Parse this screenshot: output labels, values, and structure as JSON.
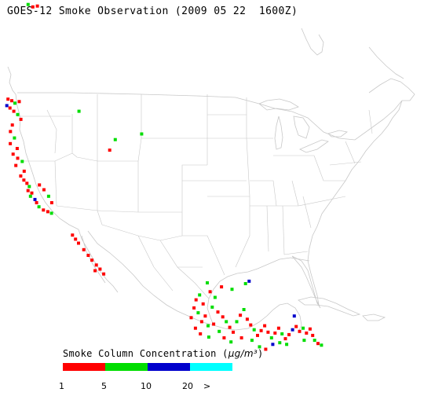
{
  "title": "GOES-12 Smoke Observation (2009 05 22  1600Z)",
  "legend": {
    "title_prefix": "Smoke Column Concentration (",
    "unit": "µg/m³",
    "title_suffix": ")",
    "colors": [
      "#ff0000",
      "#00dd00",
      "#0000cc",
      "#00ffff"
    ],
    "ticks": [
      "1",
      "5",
      "10",
      "20",
      ">"
    ]
  },
  "map": {
    "border_color": "#c8c8c8",
    "smoke_cells": [
      {
        "lon": -124.1,
        "lat": 48.4,
        "level": 0
      },
      {
        "lon": -123.6,
        "lat": 48.2,
        "level": 0
      },
      {
        "lon": -124.3,
        "lat": 47.6,
        "level": 2
      },
      {
        "lon": -123.9,
        "lat": 47.3,
        "level": 0
      },
      {
        "lon": -123.2,
        "lat": 47.9,
        "level": 1
      },
      {
        "lon": -122.6,
        "lat": 48.1,
        "level": 0
      },
      {
        "lon": -123.4,
        "lat": 46.9,
        "level": 0
      },
      {
        "lon": -122.9,
        "lat": 46.5,
        "level": 1
      },
      {
        "lon": -122.5,
        "lat": 45.9,
        "level": 0
      },
      {
        "lon": -123.7,
        "lat": 45.2,
        "level": 0
      },
      {
        "lon": -124.0,
        "lat": 44.4,
        "level": 0
      },
      {
        "lon": -123.5,
        "lat": 43.6,
        "level": 1
      },
      {
        "lon": -124.1,
        "lat": 42.9,
        "level": 0
      },
      {
        "lon": -123.2,
        "lat": 42.3,
        "level": 0
      },
      {
        "lon": -123.8,
        "lat": 41.6,
        "level": 0
      },
      {
        "lon": -123.2,
        "lat": 41.1,
        "level": 0
      },
      {
        "lon": -122.6,
        "lat": 40.7,
        "level": 1
      },
      {
        "lon": -123.5,
        "lat": 40.2,
        "level": 0
      },
      {
        "lon": -122.4,
        "lat": 39.5,
        "level": 0
      },
      {
        "lon": -122.9,
        "lat": 38.9,
        "level": 0
      },
      {
        "lon": -122.5,
        "lat": 38.4,
        "level": 0
      },
      {
        "lon": -122.1,
        "lat": 38.0,
        "level": 0
      },
      {
        "lon": -121.8,
        "lat": 37.6,
        "level": 1
      },
      {
        "lon": -122.0,
        "lat": 37.1,
        "level": 0
      },
      {
        "lon": -121.5,
        "lat": 36.8,
        "level": 0
      },
      {
        "lon": -121.7,
        "lat": 36.4,
        "level": 1
      },
      {
        "lon": -121.1,
        "lat": 36.0,
        "level": 2
      },
      {
        "lon": -120.9,
        "lat": 35.6,
        "level": 0
      },
      {
        "lon": -120.6,
        "lat": 35.1,
        "level": 1
      },
      {
        "lon": -120.0,
        "lat": 34.7,
        "level": 0
      },
      {
        "lon": -119.4,
        "lat": 34.5,
        "level": 0
      },
      {
        "lon": -118.9,
        "lat": 34.3,
        "level": 1
      },
      {
        "lon": -120.4,
        "lat": 37.8,
        "level": 0
      },
      {
        "lon": -119.8,
        "lat": 37.2,
        "level": 0
      },
      {
        "lon": -119.2,
        "lat": 36.4,
        "level": 1
      },
      {
        "lon": -118.8,
        "lat": 35.6,
        "level": 0
      },
      {
        "lon": -116.1,
        "lat": 31.6,
        "level": 0
      },
      {
        "lon": -115.7,
        "lat": 31.1,
        "level": 0
      },
      {
        "lon": -115.3,
        "lat": 30.6,
        "level": 0
      },
      {
        "lon": -114.6,
        "lat": 29.8,
        "level": 0
      },
      {
        "lon": -114.0,
        "lat": 29.1,
        "level": 0
      },
      {
        "lon": -113.5,
        "lat": 28.5,
        "level": 0
      },
      {
        "lon": -112.9,
        "lat": 27.9,
        "level": 0
      },
      {
        "lon": -112.4,
        "lat": 27.4,
        "level": 0
      },
      {
        "lon": -113.1,
        "lat": 27.2,
        "level": 0
      },
      {
        "lon": -111.9,
        "lat": 26.8,
        "level": 0
      },
      {
        "lon": -114.6,
        "lat": 46.9,
        "level": 1
      },
      {
        "lon": -109.8,
        "lat": 43.4,
        "level": 1
      },
      {
        "lon": -110.6,
        "lat": 42.1,
        "level": 0
      },
      {
        "lon": -106.2,
        "lat": 44.1,
        "level": 1
      },
      {
        "lon": -120.8,
        "lat": 60.1,
        "level": 1
      },
      {
        "lon": -120.2,
        "lat": 59.8,
        "level": 0
      },
      {
        "lon": -119.6,
        "lat": 59.9,
        "level": 0
      },
      {
        "lon": -98.9,
        "lat": 23.6,
        "level": 0
      },
      {
        "lon": -98.4,
        "lat": 24.2,
        "level": 1
      },
      {
        "lon": -97.9,
        "lat": 23.1,
        "level": 0
      },
      {
        "lon": -99.2,
        "lat": 22.6,
        "level": 0
      },
      {
        "lon": -98.6,
        "lat": 22.0,
        "level": 1
      },
      {
        "lon": -97.6,
        "lat": 21.6,
        "level": 0
      },
      {
        "lon": -98.1,
        "lat": 20.9,
        "level": 0
      },
      {
        "lon": -97.2,
        "lat": 20.4,
        "level": 1
      },
      {
        "lon": -99.6,
        "lat": 21.4,
        "level": 0
      },
      {
        "lon": -99.0,
        "lat": 20.1,
        "level": 0
      },
      {
        "lon": -98.3,
        "lat": 19.4,
        "level": 0
      },
      {
        "lon": -97.1,
        "lat": 19.0,
        "level": 1
      },
      {
        "lon": -96.6,
        "lat": 22.7,
        "level": 1
      },
      {
        "lon": -96.2,
        "lat": 23.9,
        "level": 1
      },
      {
        "lon": -95.8,
        "lat": 22.1,
        "level": 0
      },
      {
        "lon": -96.9,
        "lat": 24.6,
        "level": 0
      },
      {
        "lon": -95.1,
        "lat": 21.5,
        "level": 0
      },
      {
        "lon": -94.6,
        "lat": 20.9,
        "level": 1
      },
      {
        "lon": -94.1,
        "lat": 20.2,
        "level": 0
      },
      {
        "lon": -93.6,
        "lat": 19.6,
        "level": 0
      },
      {
        "lon": -93.1,
        "lat": 20.9,
        "level": 1
      },
      {
        "lon": -92.6,
        "lat": 21.7,
        "level": 0
      },
      {
        "lon": -92.1,
        "lat": 22.4,
        "level": 1
      },
      {
        "lon": -91.6,
        "lat": 21.2,
        "level": 0
      },
      {
        "lon": -91.1,
        "lat": 20.5,
        "level": 0
      },
      {
        "lon": -90.6,
        "lat": 19.9,
        "level": 1
      },
      {
        "lon": -90.1,
        "lat": 19.2,
        "level": 0
      },
      {
        "lon": -89.6,
        "lat": 19.8,
        "level": 0
      },
      {
        "lon": -89.1,
        "lat": 20.4,
        "level": 0
      },
      {
        "lon": -88.6,
        "lat": 19.6,
        "level": 0
      },
      {
        "lon": -88.1,
        "lat": 18.9,
        "level": 1
      },
      {
        "lon": -87.6,
        "lat": 19.5,
        "level": 0
      },
      {
        "lon": -87.1,
        "lat": 20.1,
        "level": 0
      },
      {
        "lon": -86.6,
        "lat": 19.4,
        "level": 1
      },
      {
        "lon": -86.1,
        "lat": 18.8,
        "level": 0
      },
      {
        "lon": -85.6,
        "lat": 19.3,
        "level": 0
      },
      {
        "lon": -85.1,
        "lat": 19.9,
        "level": 2
      },
      {
        "lon": -84.6,
        "lat": 20.3,
        "level": 0
      },
      {
        "lon": -84.1,
        "lat": 19.7,
        "level": 0
      },
      {
        "lon": -83.6,
        "lat": 20.1,
        "level": 1
      },
      {
        "lon": -83.1,
        "lat": 19.5,
        "level": 0
      },
      {
        "lon": -82.6,
        "lat": 20.0,
        "level": 0
      },
      {
        "lon": -87.9,
        "lat": 18.1,
        "level": 2
      },
      {
        "lon": -86.9,
        "lat": 18.3,
        "level": 1
      },
      {
        "lon": -85.9,
        "lat": 18.1,
        "level": 1
      },
      {
        "lon": -81.9,
        "lat": 18.6,
        "level": 1
      },
      {
        "lon": -81.4,
        "lat": 18.2,
        "level": 0
      },
      {
        "lon": -80.9,
        "lat": 18.0,
        "level": 1
      },
      {
        "lon": -84.9,
        "lat": 21.6,
        "level": 2
      },
      {
        "lon": -91.9,
        "lat": 25.6,
        "level": 1
      },
      {
        "lon": -91.4,
        "lat": 25.9,
        "level": 2
      },
      {
        "lon": -93.8,
        "lat": 24.9,
        "level": 1
      },
      {
        "lon": -95.3,
        "lat": 25.2,
        "level": 0
      },
      {
        "lon": -97.3,
        "lat": 25.7,
        "level": 1
      },
      {
        "lon": -96.4,
        "lat": 20.6,
        "level": 0
      },
      {
        "lon": -95.6,
        "lat": 19.7,
        "level": 1
      },
      {
        "lon": -94.9,
        "lat": 18.9,
        "level": 0
      },
      {
        "lon": -93.9,
        "lat": 18.4,
        "level": 1
      },
      {
        "lon": -89.8,
        "lat": 17.8,
        "level": 1
      },
      {
        "lon": -88.9,
        "lat": 17.5,
        "level": 0
      },
      {
        "lon": -83.4,
        "lat": 18.6,
        "level": 1
      },
      {
        "lon": -82.2,
        "lat": 19.2,
        "level": 0
      },
      {
        "lon": -90.9,
        "lat": 18.6,
        "level": 1
      },
      {
        "lon": -92.4,
        "lat": 18.9,
        "level": 0
      }
    ]
  }
}
